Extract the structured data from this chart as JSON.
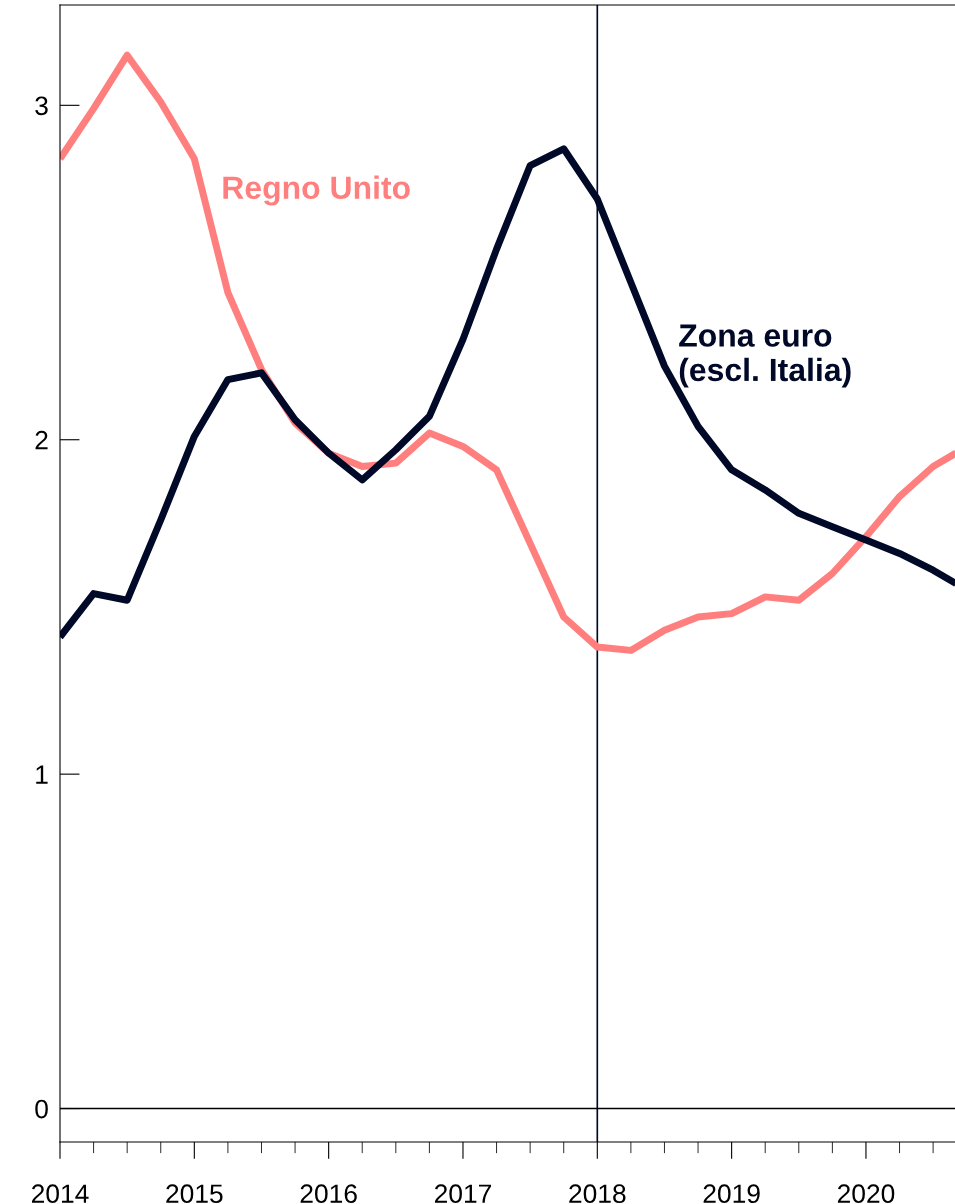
{
  "chart_data": {
    "type": "line",
    "x": [
      2014,
      2014.25,
      2014.5,
      2014.75,
      2015,
      2015.25,
      2015.5,
      2015.75,
      2016,
      2016.25,
      2016.5,
      2016.75,
      2017,
      2017.25,
      2017.5,
      2017.75,
      2018,
      2018.25,
      2018.5,
      2018.75,
      2019,
      2019.25,
      2019.5,
      2019.75,
      2020,
      2020.25,
      2020.5,
      2020.67
    ],
    "series": [
      {
        "name": "Regno Unito",
        "color": "#ff7f7f",
        "values": [
          2.84,
          2.99,
          3.15,
          3.01,
          2.84,
          2.44,
          2.21,
          2.05,
          1.96,
          1.92,
          1.93,
          2.02,
          1.98,
          1.91,
          1.69,
          1.47,
          1.38,
          1.37,
          1.43,
          1.47,
          1.48,
          1.53,
          1.52,
          1.6,
          1.71,
          1.83,
          1.92,
          1.96
        ]
      },
      {
        "name": "Zona euro\n(escl. Italia)",
        "color": "#000a28",
        "values": [
          1.41,
          1.54,
          1.52,
          1.76,
          2.01,
          2.18,
          2.2,
          2.06,
          1.96,
          1.88,
          1.97,
          2.07,
          2.3,
          2.57,
          2.82,
          2.87,
          2.72,
          2.47,
          2.22,
          2.04,
          1.91,
          1.85,
          1.78,
          1.74,
          1.7,
          1.66,
          1.61,
          1.57
        ]
      }
    ],
    "xlim": [
      2014,
      2020.67
    ],
    "xticks": [
      2014,
      2015,
      2016,
      2017,
      2018,
      2019,
      2020
    ],
    "ylim": [
      -0.1,
      3.3
    ],
    "yticks": [
      0,
      1,
      2,
      3
    ],
    "ref_lines": [
      {
        "axis": "x",
        "value": 2018,
        "color": "#000a28"
      },
      {
        "axis": "y",
        "value": 0,
        "color": "#000000"
      }
    ],
    "grid": false,
    "legend": false,
    "marker": "none",
    "line_style": "solid"
  }
}
